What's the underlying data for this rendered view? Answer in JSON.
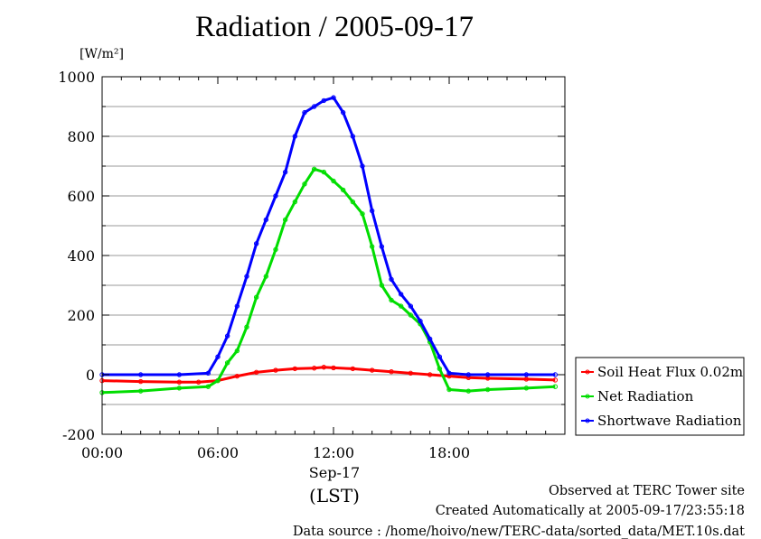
{
  "title": "Radiation / 2005-09-17",
  "ylabel_unit": "[W/m²]",
  "x_date_label": "Sep-17",
  "x_tz_label": "(LST)",
  "footer": {
    "line1": "Observed at TERC Tower site",
    "line2": "Created Automatically at 2005-09-17/23:55:18",
    "line3": "Data source : /home/hoivo/new/TERC-data/sorted_data/MET.10s.dat"
  },
  "chart_data": {
    "type": "line",
    "title": "Radiation / 2005-09-17",
    "xlabel": "Sep-17 (LST)",
    "ylabel": "[W/m²]",
    "xlim": [
      0,
      24
    ],
    "ylim": [
      -200,
      1000
    ],
    "grid": true,
    "legend_placement": "right",
    "xticks": [
      0,
      6,
      12,
      18
    ],
    "xtick_labels": [
      "00:00",
      "06:00",
      "12:00",
      "18:00"
    ],
    "yticks": [
      -200,
      0,
      200,
      400,
      600,
      800,
      1000
    ],
    "ytick_labels": [
      "-200",
      "0",
      "200",
      "400",
      "600",
      "800",
      "1000"
    ],
    "series": [
      {
        "name": "Soil Heat Flux 0.02m",
        "color": "#ff0000",
        "x": [
          0,
          2,
          4,
          5,
          6,
          7,
          8,
          9,
          10,
          11,
          11.5,
          12,
          13,
          14,
          15,
          16,
          17,
          18,
          19,
          20,
          22,
          23.5
        ],
        "y": [
          -20,
          -23,
          -25,
          -25,
          -20,
          -5,
          8,
          15,
          20,
          22,
          25,
          23,
          20,
          15,
          10,
          5,
          0,
          -5,
          -10,
          -12,
          -15,
          -18
        ]
      },
      {
        "name": "Net Radiation",
        "color": "#00dd00",
        "x": [
          0,
          2,
          4,
          5.5,
          6,
          6.5,
          7,
          7.5,
          8,
          8.5,
          9,
          9.5,
          10,
          10.5,
          11,
          11.5,
          12,
          12.5,
          13,
          13.5,
          14,
          14.5,
          15,
          15.5,
          16,
          16.5,
          17,
          17.5,
          18,
          19,
          20,
          22,
          23.5
        ],
        "y": [
          -60,
          -55,
          -45,
          -40,
          -20,
          40,
          80,
          160,
          260,
          330,
          420,
          520,
          580,
          640,
          690,
          680,
          650,
          620,
          580,
          540,
          430,
          300,
          250,
          230,
          200,
          170,
          110,
          20,
          -50,
          -55,
          -50,
          -45,
          -40
        ]
      },
      {
        "name": "Shortwave Radiation",
        "color": "#0000ff",
        "x": [
          0,
          2,
          4,
          5.5,
          6,
          6.5,
          7,
          7.5,
          8,
          8.5,
          9,
          9.5,
          10,
          10.5,
          11,
          11.5,
          12,
          12.5,
          13,
          13.5,
          14,
          14.5,
          15,
          15.5,
          16,
          16.5,
          17,
          17.5,
          18,
          19,
          20,
          22,
          23.5
        ],
        "y": [
          0,
          0,
          0,
          5,
          60,
          130,
          230,
          330,
          440,
          520,
          600,
          680,
          800,
          880,
          900,
          920,
          930,
          880,
          800,
          700,
          550,
          430,
          320,
          270,
          230,
          180,
          120,
          60,
          5,
          0,
          0,
          0,
          0
        ]
      }
    ]
  }
}
